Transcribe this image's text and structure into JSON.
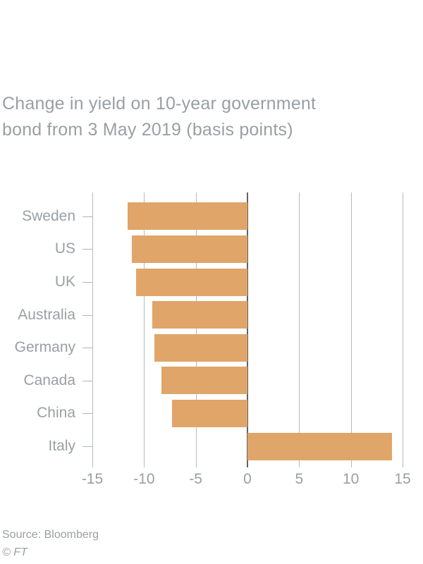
{
  "title": "Change in yield on 10-year government bond from 3 May 2019 (basis points)",
  "footer": {
    "source": "Source: Bloomberg",
    "copyright": "© FT"
  },
  "colors": {
    "bar": "#e0a569",
    "grid": "#b5bac0",
    "zero_line": "#616368",
    "text": "#9a9fa4",
    "background": "#ffffff"
  },
  "chart_data": {
    "type": "bar",
    "orientation": "horizontal",
    "title": "Change in yield on 10-year government bond from 3 May 2019 (basis points)",
    "categories": [
      "Sweden",
      "US",
      "UK",
      "Australia",
      "Germany",
      "Canada",
      "China",
      "Italy"
    ],
    "values": [
      -11.6,
      -11.2,
      -10.8,
      -9.2,
      -9.0,
      -8.3,
      -7.3,
      14.0
    ],
    "xlabel": "",
    "ylabel": "",
    "xlim": [
      -15,
      15
    ],
    "xticks": [
      -15,
      -10,
      -5,
      0,
      5,
      10,
      15
    ],
    "grid": "vertical-only",
    "legend": false,
    "source": "Bloomberg"
  }
}
